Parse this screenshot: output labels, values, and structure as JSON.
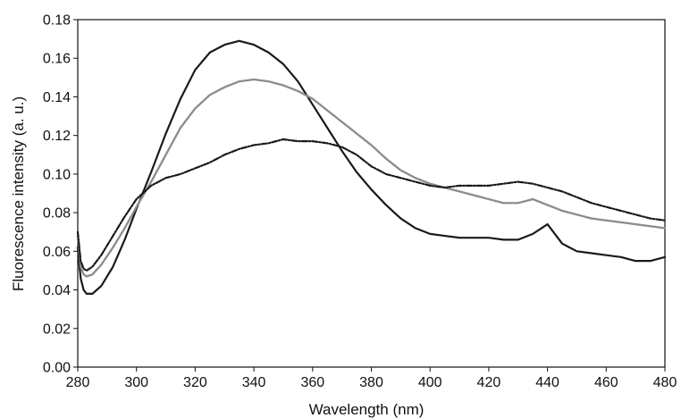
{
  "chart_data": {
    "type": "line",
    "title": "",
    "xlabel": "Wavelength (nm)",
    "ylabel": "Fluorescence intensity (a. u.)",
    "xlim": [
      280,
      480
    ],
    "ylim": [
      0.0,
      0.18
    ],
    "x_ticks": [
      "280",
      "300",
      "320",
      "340",
      "360",
      "380",
      "400",
      "420",
      "440",
      "460",
      "480"
    ],
    "y_ticks": [
      "0.00",
      "0.02",
      "0.04",
      "0.06",
      "0.08",
      "0.10",
      "0.12",
      "0.14",
      "0.16",
      "0.18"
    ],
    "grid": false,
    "legend": "none",
    "series": [
      {
        "style": "solid",
        "color": "#1a1a1a",
        "x": [
          280,
          281,
          282,
          283,
          285,
          288,
          292,
          296,
          300,
          305,
          310,
          315,
          320,
          325,
          330,
          335,
          340,
          345,
          350,
          355,
          360,
          365,
          370,
          375,
          380,
          385,
          390,
          395,
          400,
          405,
          410,
          415,
          420,
          425,
          430,
          435,
          438,
          440,
          442,
          445,
          450,
          455,
          460,
          465,
          470,
          475,
          480
        ],
        "y": [
          0.062,
          0.046,
          0.04,
          0.038,
          0.038,
          0.042,
          0.052,
          0.066,
          0.082,
          0.101,
          0.121,
          0.139,
          0.154,
          0.163,
          0.167,
          0.169,
          0.167,
          0.163,
          0.157,
          0.148,
          0.136,
          0.124,
          0.112,
          0.101,
          0.092,
          0.084,
          0.077,
          0.072,
          0.069,
          0.068,
          0.067,
          0.067,
          0.067,
          0.066,
          0.066,
          0.069,
          0.072,
          0.074,
          0.07,
          0.064,
          0.06,
          0.059,
          0.058,
          0.057,
          0.055,
          0.055,
          0.057
        ]
      },
      {
        "style": "dotted",
        "color": "#8c8c8c",
        "x": [
          280,
          281,
          282,
          283,
          285,
          288,
          292,
          296,
          300,
          305,
          310,
          315,
          320,
          325,
          330,
          335,
          340,
          345,
          350,
          355,
          360,
          365,
          370,
          375,
          380,
          385,
          390,
          395,
          400,
          405,
          410,
          415,
          420,
          425,
          430,
          435,
          440,
          445,
          450,
          455,
          460,
          465,
          470,
          475,
          480
        ],
        "y": [
          0.068,
          0.052,
          0.048,
          0.047,
          0.048,
          0.053,
          0.062,
          0.072,
          0.083,
          0.096,
          0.11,
          0.124,
          0.134,
          0.141,
          0.145,
          0.148,
          0.149,
          0.148,
          0.146,
          0.143,
          0.139,
          0.133,
          0.127,
          0.121,
          0.115,
          0.108,
          0.102,
          0.098,
          0.095,
          0.093,
          0.091,
          0.089,
          0.087,
          0.085,
          0.085,
          0.087,
          0.084,
          0.081,
          0.079,
          0.077,
          0.076,
          0.075,
          0.074,
          0.073,
          0.072
        ]
      },
      {
        "style": "dashdot",
        "color": "#1a1a1a",
        "x": [
          280,
          281,
          282,
          283,
          285,
          288,
          292,
          296,
          300,
          305,
          310,
          315,
          320,
          325,
          330,
          335,
          340,
          345,
          350,
          355,
          360,
          365,
          370,
          375,
          380,
          385,
          390,
          395,
          400,
          405,
          410,
          415,
          420,
          425,
          430,
          435,
          440,
          445,
          450,
          455,
          460,
          465,
          470,
          475,
          480
        ],
        "y": [
          0.07,
          0.055,
          0.051,
          0.05,
          0.052,
          0.058,
          0.068,
          0.078,
          0.087,
          0.094,
          0.098,
          0.1,
          0.103,
          0.106,
          0.11,
          0.113,
          0.115,
          0.116,
          0.118,
          0.117,
          0.117,
          0.116,
          0.114,
          0.11,
          0.104,
          0.1,
          0.098,
          0.096,
          0.094,
          0.093,
          0.094,
          0.094,
          0.094,
          0.095,
          0.096,
          0.095,
          0.093,
          0.091,
          0.088,
          0.085,
          0.083,
          0.081,
          0.079,
          0.077,
          0.076
        ]
      }
    ]
  }
}
